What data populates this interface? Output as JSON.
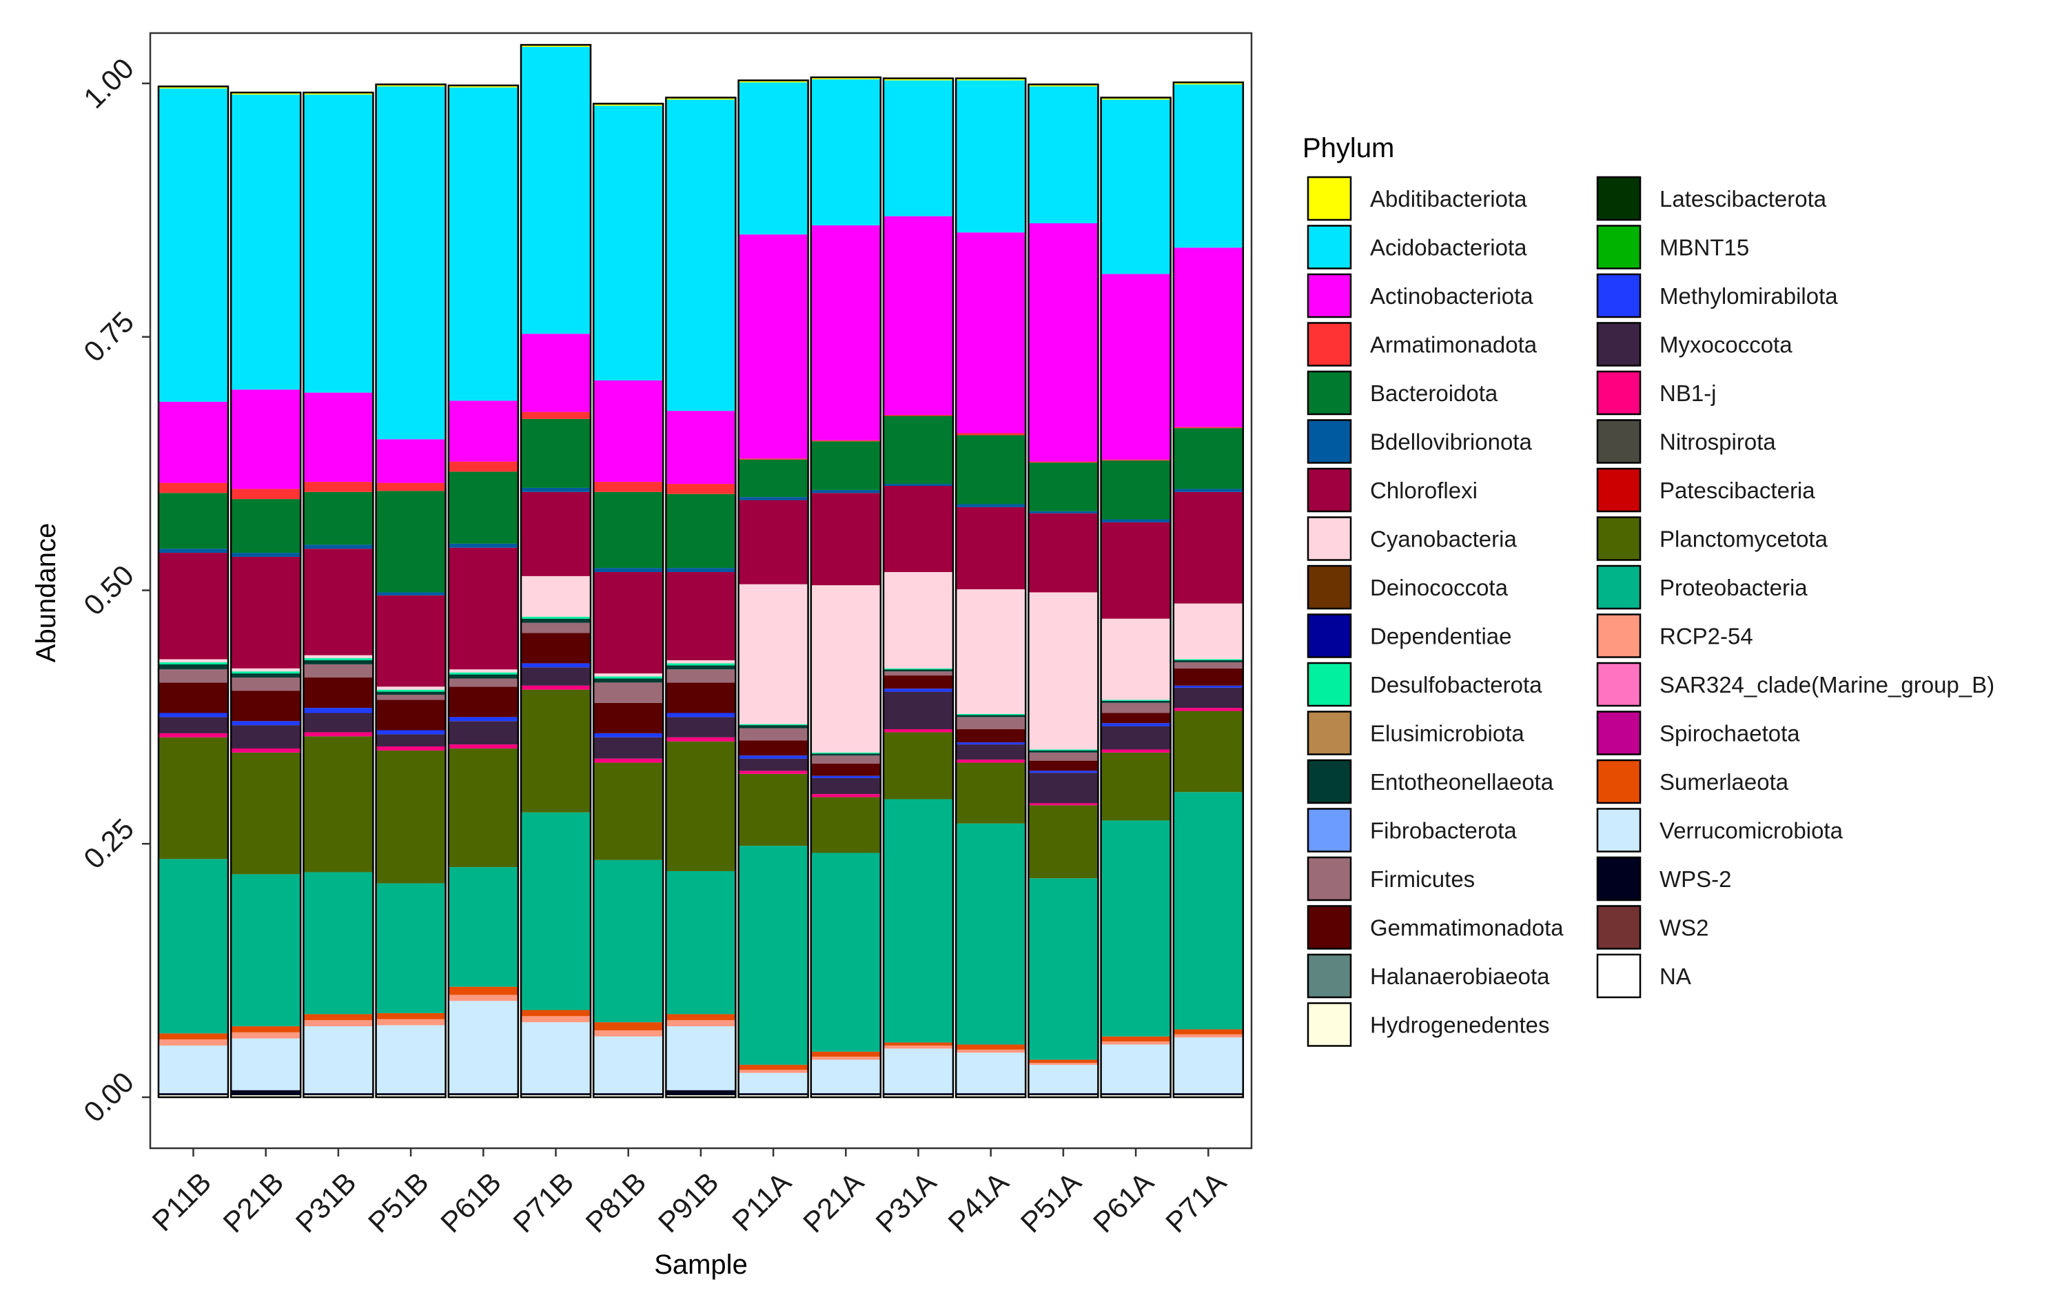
{
  "chart_data": {
    "type": "bar",
    "stacked": true,
    "title": "",
    "xlabel": "Sample",
    "ylabel": "Abundance",
    "ylim": [
      0,
      1
    ],
    "yticks": [
      "0.00",
      "0.25",
      "0.50",
      "0.75",
      "1.00"
    ],
    "ytick_values": [
      0,
      0.25,
      0.5,
      0.75,
      1.0
    ],
    "grid": false,
    "legend_title": "Phylum",
    "legend_position": "right",
    "categories": [
      "P11B",
      "P21B",
      "P31B",
      "P51B",
      "P61B",
      "P71B",
      "P81B",
      "P91B",
      "P11A",
      "P21A",
      "P31A",
      "P41A",
      "P51A",
      "P61A",
      "P71A"
    ],
    "legend_entries": [
      {
        "name": "Abditibacteriota",
        "color": "#ffff00"
      },
      {
        "name": "Acidobacteriota",
        "color": "#00e5ff"
      },
      {
        "name": "Actinobacteriota",
        "color": "#ff00ff"
      },
      {
        "name": "Armatimonadota",
        "color": "#ff3333"
      },
      {
        "name": "Bacteroidota",
        "color": "#007a2e"
      },
      {
        "name": "Bdellovibrionota",
        "color": "#005aa0"
      },
      {
        "name": "Chloroflexi",
        "color": "#a0003f"
      },
      {
        "name": "Cyanobacteria",
        "color": "#ffd6e0"
      },
      {
        "name": "Deinococcota",
        "color": "#6b3300"
      },
      {
        "name": "Dependentiae",
        "color": "#00009a"
      },
      {
        "name": "Desulfobacterota",
        "color": "#00f0a0"
      },
      {
        "name": "Elusimicrobiota",
        "color": "#b8874c"
      },
      {
        "name": "Entotheonellaeota",
        "color": "#003c33"
      },
      {
        "name": "Fibrobacterota",
        "color": "#6c9cff"
      },
      {
        "name": "Firmicutes",
        "color": "#9c6b78"
      },
      {
        "name": "Gemmatimonadota",
        "color": "#5a0000"
      },
      {
        "name": "Halanaerobiaeota",
        "color": "#5f8580"
      },
      {
        "name": "Hydrogenedentes",
        "color": "#ffffe0"
      },
      {
        "name": "Latescibacterota",
        "color": "#003300"
      },
      {
        "name": "MBNT15",
        "color": "#00b300"
      },
      {
        "name": "Methylomirabilota",
        "color": "#1f3cff"
      },
      {
        "name": "Myxococcota",
        "color": "#3c2444"
      },
      {
        "name": "NB1-j",
        "color": "#ff0080"
      },
      {
        "name": "Nitrospirota",
        "color": "#4a4a40"
      },
      {
        "name": "Patescibacteria",
        "color": "#cc0000"
      },
      {
        "name": "Planctomycetota",
        "color": "#4d6600"
      },
      {
        "name": "Proteobacteria",
        "color": "#00b48a"
      },
      {
        "name": "RCP2-54",
        "color": "#ff9980"
      },
      {
        "name": "SAR324_clade(Marine_group_B)",
        "color": "#ff73c0"
      },
      {
        "name": "Spirochaetota",
        "color": "#c00090"
      },
      {
        "name": "Sumerlaeota",
        "color": "#e64d00"
      },
      {
        "name": "Verrucomicrobiota",
        "color": "#ccebff"
      },
      {
        "name": "WPS-2",
        "color": "#00001f"
      },
      {
        "name": "WS2",
        "color": "#733333"
      },
      {
        "name": "NA",
        "color": "#ffffff"
      }
    ],
    "series": [
      {
        "name": "Hydrogenedentes",
        "values": [
          0.002,
          0.002,
          0.002,
          0.002,
          0.002,
          0.002,
          0.002,
          0.002,
          0.002,
          0.002,
          0.002,
          0.002,
          0.002,
          0.002,
          0.002
        ]
      },
      {
        "name": "WPS-2",
        "values": [
          0.002,
          0.005,
          0.002,
          0.002,
          0.002,
          0.002,
          0.002,
          0.005,
          0.002,
          0.002,
          0.002,
          0.002,
          0.002,
          0.002,
          0.002
        ]
      },
      {
        "name": "Verrucomicrobiota",
        "values": [
          0.047,
          0.051,
          0.066,
          0.067,
          0.091,
          0.07,
          0.056,
          0.063,
          0.02,
          0.033,
          0.044,
          0.04,
          0.028,
          0.048,
          0.055
        ]
      },
      {
        "name": "RCP2-54",
        "values": [
          0.006,
          0.006,
          0.006,
          0.006,
          0.006,
          0.006,
          0.006,
          0.006,
          0.003,
          0.003,
          0.003,
          0.003,
          0.002,
          0.003,
          0.003
        ]
      },
      {
        "name": "Sumerlaeota",
        "values": [
          0.006,
          0.006,
          0.006,
          0.006,
          0.008,
          0.006,
          0.008,
          0.006,
          0.005,
          0.005,
          0.003,
          0.005,
          0.003,
          0.005,
          0.005
        ]
      },
      {
        "name": "Proteobacteria",
        "values": [
          0.172,
          0.15,
          0.14,
          0.128,
          0.118,
          0.195,
          0.16,
          0.141,
          0.216,
          0.196,
          0.24,
          0.218,
          0.179,
          0.213,
          0.234
        ]
      },
      {
        "name": "Planctomycetota",
        "values": [
          0.12,
          0.12,
          0.134,
          0.131,
          0.117,
          0.121,
          0.096,
          0.128,
          0.071,
          0.055,
          0.066,
          0.06,
          0.072,
          0.067,
          0.08
        ]
      },
      {
        "name": "NB1-j",
        "values": [
          0.004,
          0.004,
          0.004,
          0.004,
          0.004,
          0.004,
          0.004,
          0.004,
          0.003,
          0.003,
          0.003,
          0.003,
          0.002,
          0.003,
          0.003
        ]
      },
      {
        "name": "Myxococcota",
        "values": [
          0.016,
          0.023,
          0.019,
          0.012,
          0.023,
          0.018,
          0.021,
          0.02,
          0.012,
          0.016,
          0.037,
          0.015,
          0.03,
          0.023,
          0.02
        ]
      },
      {
        "name": "Methylomirabilota",
        "values": [
          0.004,
          0.004,
          0.005,
          0.004,
          0.004,
          0.004,
          0.004,
          0.004,
          0.003,
          0.002,
          0.003,
          0.002,
          0.002,
          0.003,
          0.002
        ]
      },
      {
        "name": "Gemmatimonadota",
        "values": [
          0.03,
          0.03,
          0.03,
          0.03,
          0.03,
          0.03,
          0.03,
          0.03,
          0.015,
          0.012,
          0.013,
          0.013,
          0.01,
          0.01,
          0.017
        ]
      },
      {
        "name": "Firmicutes",
        "values": [
          0.013,
          0.013,
          0.013,
          0.005,
          0.008,
          0.01,
          0.02,
          0.013,
          0.012,
          0.008,
          0.004,
          0.012,
          0.008,
          0.01,
          0.006
        ]
      },
      {
        "name": "Entotheonellaeota",
        "values": [
          0.005,
          0.004,
          0.004,
          0.003,
          0.004,
          0.004,
          0.004,
          0.004,
          0.003,
          0.002,
          0.002,
          0.002,
          0.002,
          0.002,
          0.002
        ]
      },
      {
        "name": "Desulfobacterota",
        "values": [
          0.002,
          0.002,
          0.002,
          0.002,
          0.002,
          0.002,
          0.002,
          0.002,
          0.001,
          0.001,
          0.001,
          0.001,
          0.001,
          0.001,
          0.001
        ]
      },
      {
        "name": "Cyanobacteria",
        "values": [
          0.003,
          0.003,
          0.003,
          0.003,
          0.003,
          0.04,
          0.003,
          0.003,
          0.138,
          0.165,
          0.095,
          0.123,
          0.155,
          0.08,
          0.055
        ]
      },
      {
        "name": "Chloroflexi",
        "values": [
          0.105,
          0.11,
          0.105,
          0.09,
          0.12,
          0.083,
          0.1,
          0.087,
          0.083,
          0.091,
          0.085,
          0.081,
          0.078,
          0.095,
          0.11
        ]
      },
      {
        "name": "Bdellovibrionota",
        "values": [
          0.004,
          0.004,
          0.004,
          0.003,
          0.004,
          0.004,
          0.004,
          0.004,
          0.003,
          0.003,
          0.002,
          0.003,
          0.002,
          0.003,
          0.003
        ]
      },
      {
        "name": "Bacteroidota",
        "values": [
          0.055,
          0.053,
          0.052,
          0.1,
          0.071,
          0.068,
          0.075,
          0.073,
          0.037,
          0.048,
          0.067,
          0.068,
          0.048,
          0.058,
          0.06
        ]
      },
      {
        "name": "Armatimonadota",
        "values": [
          0.01,
          0.01,
          0.01,
          0.008,
          0.01,
          0.007,
          0.01,
          0.01,
          0.001,
          0.001,
          0.001,
          0.002,
          0.001,
          0.001,
          0.001
        ]
      },
      {
        "name": "Actinobacteriota",
        "values": [
          0.08,
          0.098,
          0.088,
          0.043,
          0.06,
          0.077,
          0.1,
          0.072,
          0.221,
          0.212,
          0.196,
          0.198,
          0.235,
          0.183,
          0.177
        ]
      },
      {
        "name": "Acidobacteriota",
        "values": [
          0.309,
          0.291,
          0.294,
          0.348,
          0.309,
          0.283,
          0.271,
          0.307,
          0.15,
          0.144,
          0.134,
          0.15,
          0.135,
          0.172,
          0.161
        ]
      },
      {
        "name": "Abditibacteriota",
        "values": [
          0.002,
          0.002,
          0.002,
          0.002,
          0.002,
          0.002,
          0.002,
          0.002,
          0.002,
          0.002,
          0.002,
          0.002,
          0.002,
          0.002,
          0.002
        ]
      }
    ]
  }
}
